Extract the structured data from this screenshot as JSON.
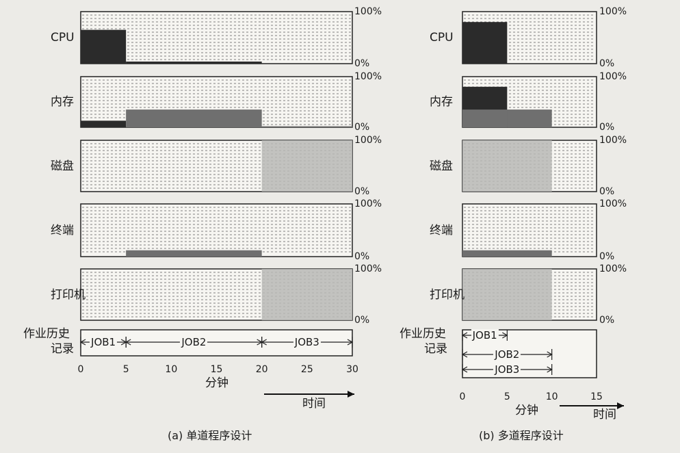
{
  "chart_data": [
    {
      "type": "timeline",
      "caption": "(a) 单道程序设计",
      "x_axis": {
        "label": "分钟",
        "ticks": [
          0,
          5,
          10,
          15,
          20,
          25,
          30
        ]
      },
      "time_label": "时间",
      "resources": [
        {
          "name": "CPU",
          "usage": [
            {
              "start": 0,
              "end": 5,
              "level": 0.65,
              "shade": "dark"
            },
            {
              "start": 5,
              "end": 20,
              "level": 0.04,
              "shade": "dark"
            }
          ]
        },
        {
          "name": "内存",
          "usage": [
            {
              "start": 0,
              "end": 5,
              "level": 0.13,
              "shade": "dark"
            },
            {
              "start": 5,
              "end": 20,
              "level": 0.35,
              "shade": "mid"
            },
            {
              "start": 20,
              "end": 30,
              "level": 0.02,
              "shade": "mid"
            }
          ]
        },
        {
          "name": "磁盘",
          "usage": [
            {
              "start": 20,
              "end": 30,
              "level": 1.0,
              "shade": "light"
            }
          ]
        },
        {
          "name": "终端",
          "usage": [
            {
              "start": 5,
              "end": 20,
              "level": 0.12,
              "shade": "mid"
            }
          ]
        },
        {
          "name": "打印机",
          "usage": [
            {
              "start": 20,
              "end": 30,
              "level": 1.0,
              "shade": "light"
            }
          ]
        }
      ],
      "jobs": [
        {
          "name": "JOB1",
          "start": 0,
          "end": 5
        },
        {
          "name": "JOB2",
          "start": 5,
          "end": 20
        },
        {
          "name": "JOB3",
          "start": 20,
          "end": 30
        }
      ],
      "history_label": "作业历史\n记录",
      "percent_labels": {
        "max": "100%",
        "min": "0%"
      }
    },
    {
      "type": "timeline",
      "caption": "(b) 多道程序设计",
      "x_axis": {
        "label": "分钟",
        "ticks": [
          0,
          5,
          10,
          15
        ]
      },
      "time_label": "时间",
      "resources": [
        {
          "name": "CPU",
          "usage": [
            {
              "start": 0,
              "end": 5,
              "level": 0.8,
              "shade": "dark"
            }
          ]
        },
        {
          "name": "内存",
          "usage": [
            {
              "start": 0,
              "end": 5,
              "level": 0.8,
              "shade": "dark"
            },
            {
              "start": 0,
              "end": 5,
              "level": 0.35,
              "shade": "mid"
            },
            {
              "start": 5,
              "end": 10,
              "level": 0.35,
              "shade": "mid"
            }
          ]
        },
        {
          "name": "磁盘",
          "usage": [
            {
              "start": 0,
              "end": 10,
              "level": 1.0,
              "shade": "light"
            }
          ]
        },
        {
          "name": "终端",
          "usage": [
            {
              "start": 0,
              "end": 10,
              "level": 0.12,
              "shade": "mid"
            }
          ]
        },
        {
          "name": "打印机",
          "usage": [
            {
              "start": 0,
              "end": 10,
              "level": 1.0,
              "shade": "light"
            }
          ]
        }
      ],
      "jobs": [
        {
          "name": "JOB1",
          "start": 0,
          "end": 5
        },
        {
          "name": "JOB2",
          "start": 0,
          "end": 10
        },
        {
          "name": "JOB3",
          "start": 0,
          "end": 10
        }
      ],
      "history_label": "作业历史\n记录",
      "percent_labels": {
        "max": "100%",
        "min": "0%"
      }
    }
  ],
  "colors": {
    "dark": "#2b2b2b",
    "mid": "#6f6f6f",
    "light": "#b9b9b6",
    "panel": "#f6f5f1",
    "dash": "#5a5a5a"
  }
}
